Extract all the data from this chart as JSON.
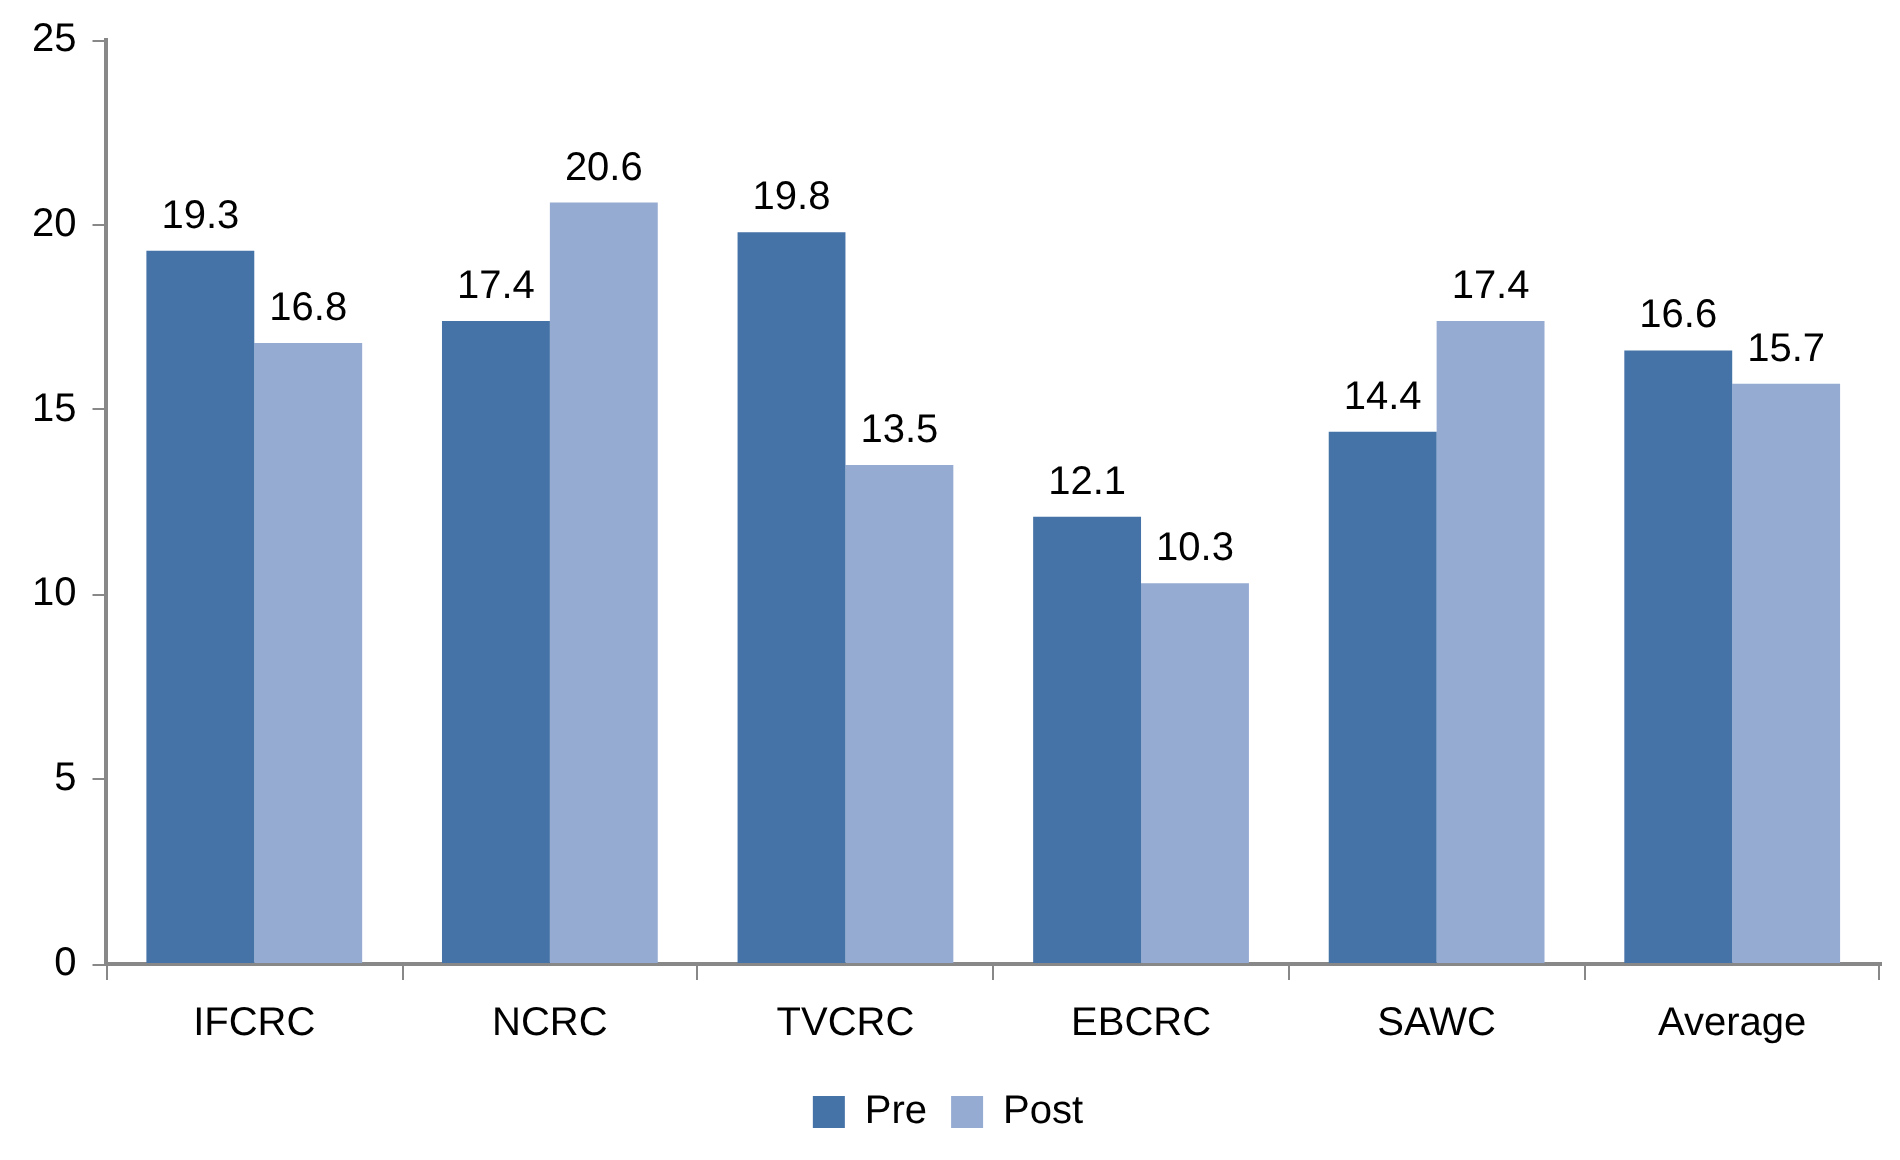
{
  "chart_data": {
    "type": "bar",
    "categories": [
      "IFCRC",
      "NCRC",
      "TVCRC",
      "EBCRC",
      "SAWC",
      "Average"
    ],
    "series": [
      {
        "name": "Pre",
        "color": "#4572a7",
        "values": [
          19.3,
          17.4,
          19.8,
          12.1,
          14.4,
          16.6
        ]
      },
      {
        "name": "Post",
        "color": "#95abd2",
        "values": [
          16.8,
          20.6,
          13.5,
          10.3,
          17.4,
          15.7
        ]
      }
    ],
    "ylim": [
      0,
      25
    ],
    "yticks": [
      0,
      5,
      10,
      15,
      20,
      25
    ],
    "grid": false,
    "legend": "bottom",
    "data_labels": true
  }
}
